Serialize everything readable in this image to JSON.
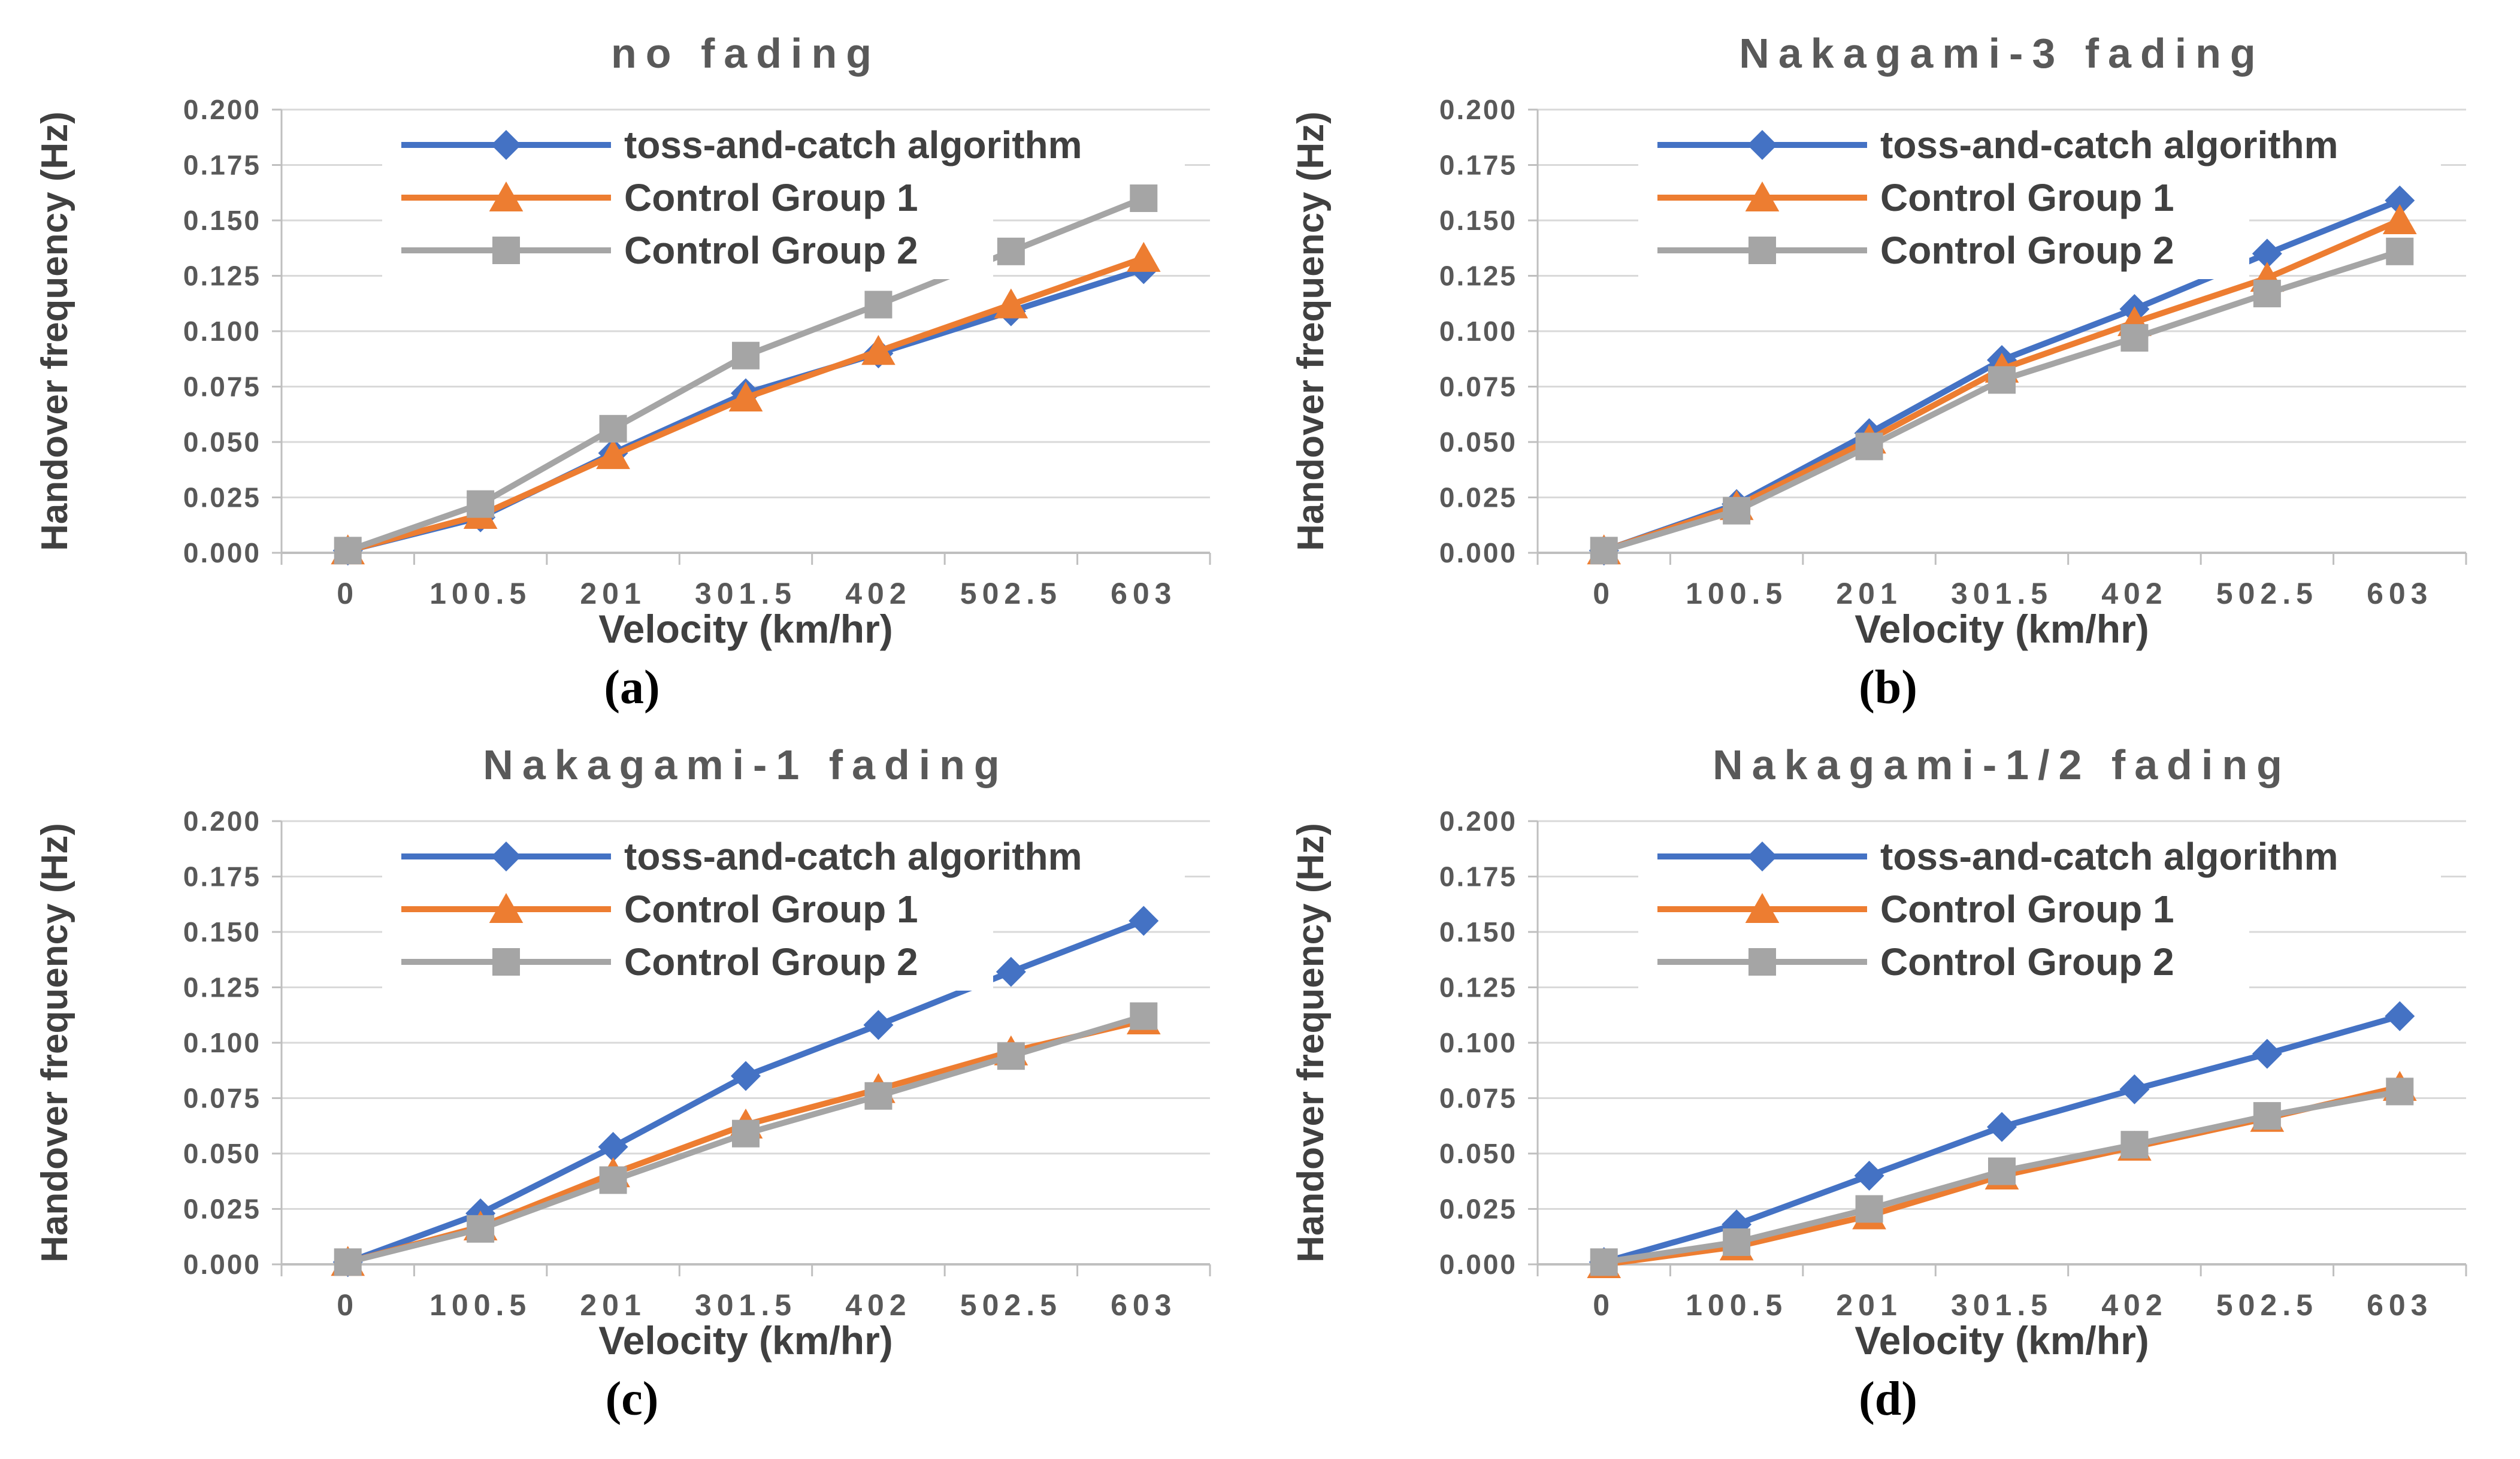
{
  "styles": {
    "background": "#FFFFFF",
    "title_color": "#595959",
    "tick_label_color": "#595959",
    "axis_title_color": "#404040",
    "legend_text_color": "#404040",
    "grid_color": "#D9D9D9",
    "axis_line_color": "#BFBFBF",
    "series_blue": "#4472C4",
    "series_orange": "#ED7D31",
    "series_gray": "#A5A5A5"
  },
  "captions": {
    "a": "(a)",
    "b": "(b)",
    "c": "(c)",
    "d": "(d)"
  },
  "chart_data": [
    {
      "type": "line",
      "panel": "a",
      "caption": "(a)",
      "title": "no fading",
      "xlabel": "Velocity (km/hr)",
      "ylabel": "Handover frequency (Hz)",
      "categories": [
        "0",
        "100.5",
        "201",
        "301.5",
        "402",
        "502.5",
        "603"
      ],
      "ylim": [
        0,
        0.2
      ],
      "ytick_step": 0.025,
      "grid": true,
      "legend_position": "top-left-inside",
      "series": [
        {
          "name": "toss-and-catch algorithm",
          "color": "#4472C4",
          "marker": "diamond",
          "values": [
            0.001,
            0.016,
            0.045,
            0.072,
            0.09,
            0.109,
            0.128
          ]
        },
        {
          "name": "Control Group 1",
          "color": "#ED7D31",
          "marker": "triangle",
          "values": [
            0.001,
            0.017,
            0.044,
            0.07,
            0.091,
            0.112,
            0.133
          ]
        },
        {
          "name": "Control Group 2",
          "color": "#A5A5A5",
          "marker": "square",
          "values": [
            0.001,
            0.022,
            0.056,
            0.089,
            0.112,
            0.136,
            0.16
          ]
        }
      ]
    },
    {
      "type": "line",
      "panel": "b",
      "caption": "(b)",
      "title": "Nakagami-3 fading",
      "xlabel": "Velocity (km/hr)",
      "ylabel": "Handover frequency (Hz)",
      "categories": [
        "0",
        "100.5",
        "201",
        "301.5",
        "402",
        "502.5",
        "603"
      ],
      "ylim": [
        0,
        0.2
      ],
      "ytick_step": 0.025,
      "grid": true,
      "legend_position": "top-left-inside",
      "series": [
        {
          "name": "toss-and-catch algorithm",
          "color": "#4472C4",
          "marker": "diamond",
          "values": [
            0.001,
            0.022,
            0.054,
            0.087,
            0.11,
            0.135,
            0.159
          ]
        },
        {
          "name": "Control Group 1",
          "color": "#ED7D31",
          "marker": "triangle",
          "values": [
            0.001,
            0.021,
            0.051,
            0.083,
            0.104,
            0.124,
            0.15
          ]
        },
        {
          "name": "Control Group 2",
          "color": "#A5A5A5",
          "marker": "square",
          "values": [
            0.001,
            0.019,
            0.048,
            0.078,
            0.097,
            0.117,
            0.136
          ]
        }
      ]
    },
    {
      "type": "line",
      "panel": "c",
      "caption": "(c)",
      "title": "Nakagami-1 fading",
      "xlabel": "Velocity (km/hr)",
      "ylabel": "Handover frequency (Hz)",
      "categories": [
        "0",
        "100.5",
        "201",
        "301.5",
        "402",
        "502.5",
        "603"
      ],
      "ylim": [
        0,
        0.2
      ],
      "ytick_step": 0.025,
      "grid": true,
      "legend_position": "top-left-inside",
      "series": [
        {
          "name": "toss-and-catch algorithm",
          "color": "#4472C4",
          "marker": "diamond",
          "values": [
            0.001,
            0.023,
            0.053,
            0.085,
            0.108,
            0.132,
            0.155
          ]
        },
        {
          "name": "Control Group 1",
          "color": "#ED7D31",
          "marker": "triangle",
          "values": [
            0.001,
            0.017,
            0.041,
            0.063,
            0.079,
            0.096,
            0.11
          ]
        },
        {
          "name": "Control Group 2",
          "color": "#A5A5A5",
          "marker": "square",
          "values": [
            0.001,
            0.016,
            0.038,
            0.059,
            0.076,
            0.094,
            0.112
          ]
        }
      ]
    },
    {
      "type": "line",
      "panel": "d",
      "caption": "(d)",
      "title": "Nakagami-1/2 fading",
      "xlabel": "Velocity (km/hr)",
      "ylabel": "Handover frequency (Hz)",
      "categories": [
        "0",
        "100.5",
        "201",
        "301.5",
        "402",
        "502.5",
        "603"
      ],
      "ylim": [
        0,
        0.2
      ],
      "ytick_step": 0.025,
      "grid": true,
      "legend_position": "top-left-inside",
      "series": [
        {
          "name": "toss-and-catch algorithm",
          "color": "#4472C4",
          "marker": "diamond",
          "values": [
            0.001,
            0.018,
            0.04,
            0.062,
            0.079,
            0.095,
            0.112
          ]
        },
        {
          "name": "Control Group 1",
          "color": "#ED7D31",
          "marker": "triangle",
          "values": [
            0.0,
            0.008,
            0.022,
            0.04,
            0.053,
            0.066,
            0.08
          ]
        },
        {
          "name": "Control Group 2",
          "color": "#A5A5A5",
          "marker": "square",
          "values": [
            0.001,
            0.01,
            0.025,
            0.042,
            0.054,
            0.067,
            0.078
          ]
        }
      ]
    }
  ]
}
